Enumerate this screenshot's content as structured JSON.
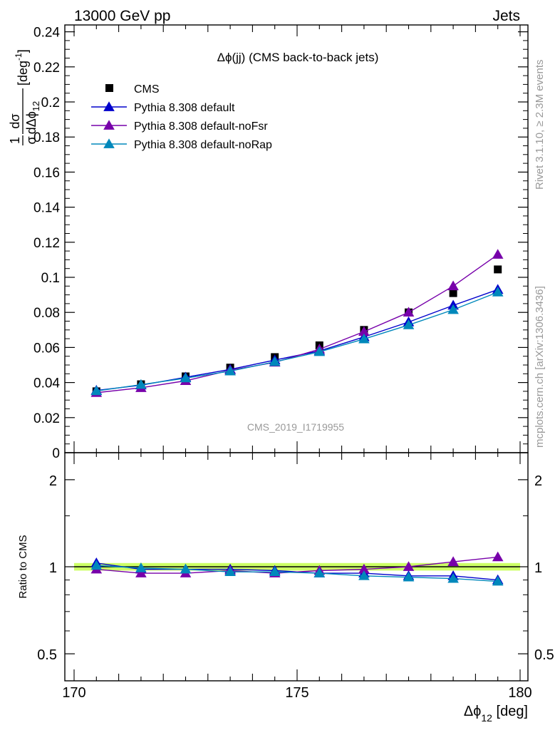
{
  "header": {
    "left": "13000 GeV pp",
    "right": "Jets"
  },
  "side_labels": {
    "upper": "Rivet 3.1.10, ≥ 2.3M events",
    "lower": "mcplots.cern.ch [arXiv:1306.3436]"
  },
  "chart_data": [
    {
      "type": "scatter",
      "title": "Δϕ(jj) (CMS back-to-back jets)",
      "watermark": "CMS_2019_I1719955",
      "ylabel": {
        "prefix_num": "1",
        "prefix_den": "σ",
        "frac_num": "dσ",
        "frac_den": "dΔϕ",
        "frac_den_sub": "12",
        "unit": "[deg",
        "unit_sup": "-1",
        "unit_close": "]"
      },
      "xlim": [
        170,
        180
      ],
      "ylim": [
        0,
        0.245
      ],
      "yticks": [
        "0",
        "0.02",
        "0.04",
        "0.06",
        "0.08",
        "0.1",
        "0.12",
        "0.14",
        "0.16",
        "0.18",
        "0.2",
        "0.22",
        "0.24"
      ],
      "x": [
        170.5,
        171.5,
        172.5,
        173.5,
        174.5,
        175.5,
        176.5,
        177.5,
        178.5,
        179.5
      ],
      "series": [
        {
          "name": "CMS",
          "color": "#000000",
          "marker": "square",
          "line": false,
          "values": [
            0.035,
            0.039,
            0.0435,
            0.0485,
            0.0545,
            0.0612,
            0.07,
            0.08,
            0.091,
            0.1045
          ]
        },
        {
          "name": "Pythia 8.308 default",
          "color": "#0000cc",
          "marker": "triangle",
          "line": true,
          "values": [
            0.0355,
            0.0385,
            0.043,
            0.0475,
            0.0528,
            0.058,
            0.066,
            0.0745,
            0.084,
            0.093
          ]
        },
        {
          "name": "Pythia 8.308 default-noFsr",
          "color": "#7700aa",
          "marker": "triangle",
          "line": true,
          "values": [
            0.0342,
            0.037,
            0.041,
            0.047,
            0.0515,
            0.059,
            0.069,
            0.08,
            0.095,
            0.113
          ]
        },
        {
          "name": "Pythia 8.308 default-noRap",
          "color": "#0088bb",
          "marker": "triangle",
          "line": true,
          "values": [
            0.0352,
            0.0388,
            0.0425,
            0.0465,
            0.0518,
            0.0575,
            0.0648,
            0.0728,
            0.0815,
            0.0915
          ]
        }
      ]
    },
    {
      "type": "scatter",
      "ylabel": "Ratio to CMS",
      "xlabel": {
        "main": "Δϕ",
        "sub": "12",
        "unit": " [deg]"
      },
      "log_y": true,
      "ylim": [
        0.4,
        2.5
      ],
      "yticks": [
        "0.5",
        "1",
        "2"
      ],
      "xticks": [
        "170",
        "175",
        "180"
      ],
      "band": {
        "low": 0.97,
        "high": 1.03,
        "color": "#ccff66"
      },
      "x": [
        170.5,
        171.5,
        172.5,
        173.5,
        174.5,
        175.5,
        176.5,
        177.5,
        178.5,
        179.5
      ],
      "series": [
        {
          "name": "Pythia 8.308 default",
          "color": "#0000cc",
          "values": [
            1.03,
            0.98,
            0.98,
            0.98,
            0.97,
            0.95,
            0.95,
            0.93,
            0.93,
            0.9
          ]
        },
        {
          "name": "Pythia 8.308 default-noFsr",
          "color": "#7700aa",
          "values": [
            0.98,
            0.95,
            0.95,
            0.97,
            0.95,
            0.97,
            0.98,
            1.0,
            1.04,
            1.08
          ]
        },
        {
          "name": "Pythia 8.308 default-noRap",
          "color": "#0088bb",
          "values": [
            1.01,
            0.99,
            0.98,
            0.96,
            0.96,
            0.95,
            0.93,
            0.92,
            0.91,
            0.89
          ]
        }
      ]
    }
  ]
}
